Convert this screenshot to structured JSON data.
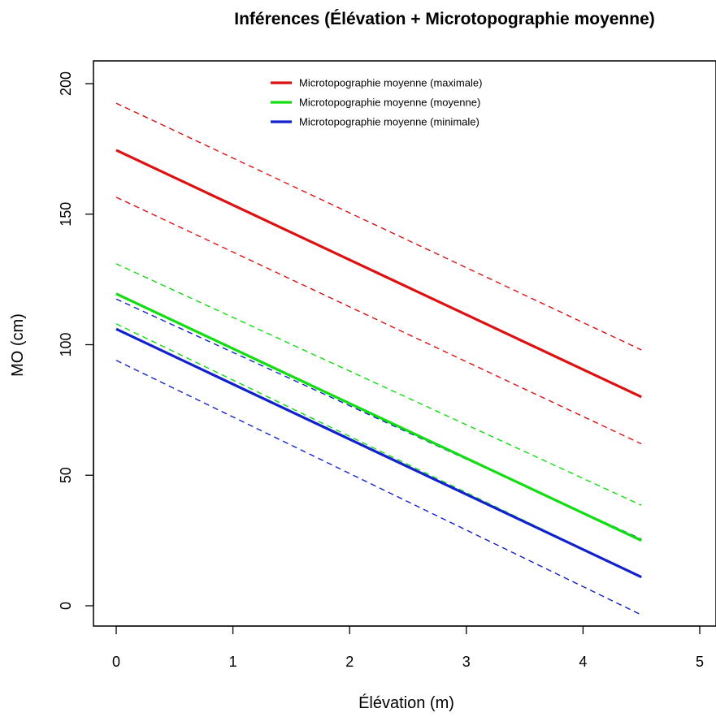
{
  "chart_data": {
    "type": "line",
    "title": "Inférences (Élévation + Microtopographie moyenne)",
    "xlabel": "Élévation (m)",
    "ylabel": "MO (cm)",
    "xlim": [
      -0.2,
      5.15
    ],
    "ylim": [
      -8,
      208
    ],
    "x_ticks": [
      "0",
      "1",
      "2",
      "3",
      "4",
      "5"
    ],
    "y_ticks": [
      "0",
      "50",
      "100",
      "150",
      "200"
    ],
    "grid": false,
    "legend_position": "top",
    "series": [
      {
        "name": "Microtopographie moyenne (maximale)",
        "color": "#dd1111",
        "x": [
          0,
          4.5
        ],
        "fit": [
          174.5,
          80
        ],
        "upper": [
          192.5,
          98
        ],
        "lower": [
          156.5,
          62
        ]
      },
      {
        "name": "Microtopographie moyenne (moyenne)",
        "color": "#11dd11",
        "x": [
          0,
          4.5
        ],
        "fit": [
          119.5,
          25
        ],
        "upper": [
          131,
          38.5
        ],
        "lower": [
          108,
          11
        ]
      },
      {
        "name": "Microtopographie moyenne (minimale)",
        "color": "#1122cc",
        "x": [
          0,
          4.5
        ],
        "fit": [
          106,
          11
        ],
        "upper": [
          117.5,
          25.5
        ],
        "lower": [
          94,
          -3.5
        ]
      }
    ]
  }
}
